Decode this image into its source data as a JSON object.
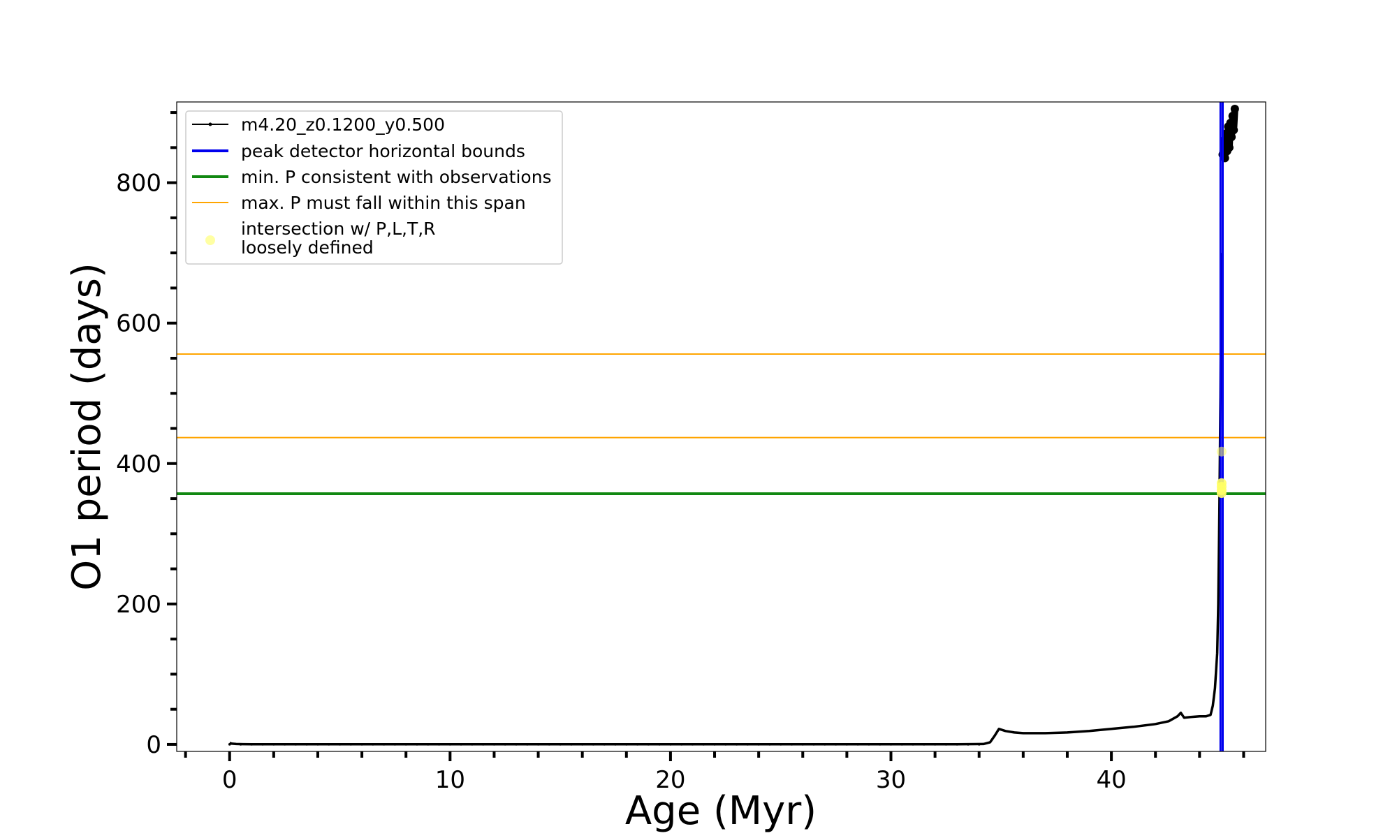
{
  "chart_data": {
    "type": "line",
    "xlabel": "Age (Myr)",
    "ylabel": "O1 period (days)",
    "xlim": [
      -2.4,
      47.0
    ],
    "ylim": [
      -10,
      915
    ],
    "x_ticks": [
      0,
      10,
      20,
      30,
      40
    ],
    "y_ticks": [
      0,
      200,
      400,
      600,
      800
    ],
    "legend_position": "upper-left",
    "colors": {
      "track": "#000000",
      "peak_bounds": "#0000ee",
      "min_period": "#118811",
      "max_period_span": "#ffa500",
      "intersection": "#ffff66"
    },
    "series": [
      {
        "name": "m4.20_z0.1200_y0.500",
        "kind": "track",
        "x": [
          0.0,
          0.1,
          0.3,
          0.6,
          1.0,
          2,
          5,
          10,
          15,
          20,
          25,
          30,
          33,
          34.2,
          34.5,
          34.7,
          34.9,
          35.2,
          35.6,
          36,
          37,
          38,
          39,
          40,
          41,
          42,
          42.6,
          43.0,
          43.15,
          43.3,
          43.6,
          44.0,
          44.3,
          44.5,
          44.6,
          44.7,
          44.8,
          44.85,
          44.9,
          44.95,
          45.0
        ],
        "y": [
          2,
          1,
          0.5,
          0.3,
          0.2,
          0.1,
          0.1,
          0.1,
          0.1,
          0.1,
          0.1,
          0.1,
          0.2,
          0.5,
          3,
          12,
          22,
          19,
          17,
          16,
          16,
          17,
          19,
          22,
          25,
          29,
          33,
          40,
          45,
          38,
          39,
          40,
          40,
          42,
          55,
          80,
          130,
          200,
          330,
          500,
          700
        ]
      },
      {
        "name": "",
        "kind": "track-cluster",
        "x": [
          45.05,
          45.1,
          45.15,
          45.2,
          45.25,
          45.3,
          45.35,
          45.4,
          45.45,
          45.5,
          45.55,
          45.6
        ],
        "y": [
          840,
          860,
          835,
          870,
          845,
          880,
          850,
          885,
          865,
          895,
          875,
          905
        ]
      },
      {
        "name": "peak detector horizontal bounds",
        "kind": "vline",
        "x": [
          44.95,
          45.05
        ]
      },
      {
        "name": "min. P consistent with observations",
        "kind": "hline",
        "y": [
          357
        ]
      },
      {
        "name": "max. P must fall within this span",
        "kind": "hline",
        "y": [
          437,
          556
        ]
      },
      {
        "name": "intersection w/ P,L,T,R loosely defined",
        "kind": "points",
        "x": [
          45.0,
          45.0,
          45.0,
          45.0,
          45.0
        ],
        "y": [
          417,
          372,
          367,
          362,
          358
        ]
      }
    ],
    "legend": [
      {
        "label": "m4.20_z0.1200_y0.500",
        "style": "track"
      },
      {
        "label": "peak detector horizontal bounds",
        "style": "vline"
      },
      {
        "label": "min. P consistent with observations",
        "style": "hline-min"
      },
      {
        "label": "max. P must fall within this span",
        "style": "hline-max"
      },
      {
        "label_lines": [
          "intersection w/ P,L,T,R",
          "loosely defined"
        ],
        "style": "points"
      }
    ]
  }
}
